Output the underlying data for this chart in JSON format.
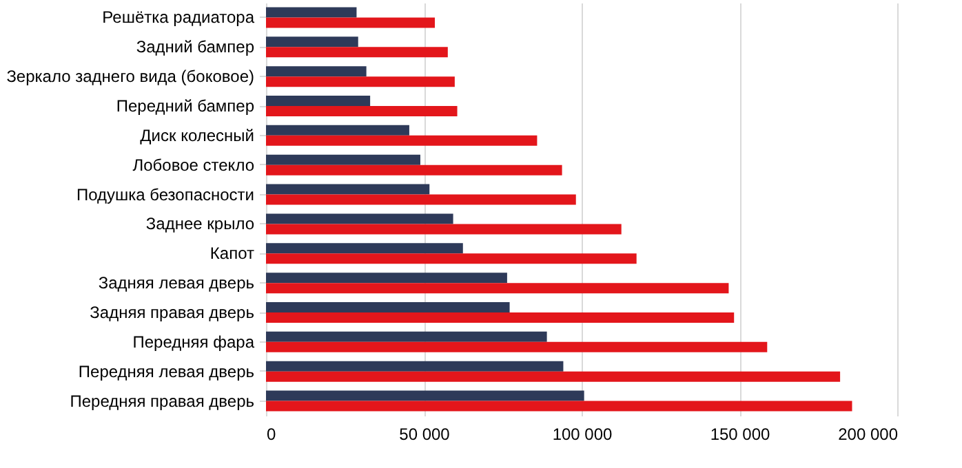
{
  "chart_data": {
    "type": "bar",
    "orientation": "horizontal",
    "categories": [
      "Решётка радиатора",
      "Задний бампер",
      "Зеркало заднего вида (боковое)",
      "Передний бампер",
      "Диск колесный",
      "Лобовое стекло",
      "Подушка безопасности",
      "Заднее крыло",
      "Капот",
      "Задняя левая дверь",
      "Задняя правая дверь",
      "Передняя фара",
      "Передняя левая дверь",
      "Передняя правая дверь"
    ],
    "series": [
      {
        "color": "#2e3a59",
        "values": [
          28700,
          29200,
          31800,
          33000,
          45400,
          48900,
          51800,
          59300,
          62400,
          76400,
          77200,
          89000,
          94200,
          100800
        ]
      },
      {
        "color": "#e3161b",
        "values": [
          53500,
          57600,
          59800,
          60600,
          85900,
          93800,
          98200,
          112600,
          117400,
          146600,
          148300,
          158800,
          181900,
          185700
        ]
      }
    ],
    "xlim": [
      0,
      200000
    ],
    "xticks": [
      0,
      {
        "value": 50000,
        "label": "50 000"
      },
      {
        "value": 100000,
        "label": "100 000"
      },
      {
        "value": 150000,
        "label": "150 000"
      },
      {
        "value": 200000,
        "label": "200 000"
      }
    ],
    "grid": "x",
    "legend": false
  }
}
